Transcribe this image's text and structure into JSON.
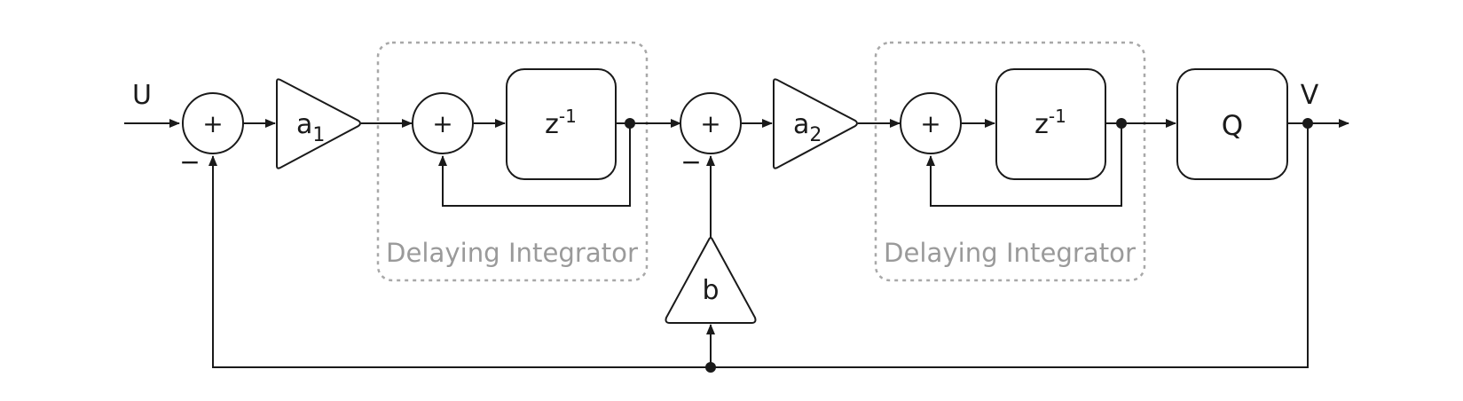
{
  "input_label": "U",
  "output_label": "V",
  "sum_symbol": "+",
  "minus_symbol": "−",
  "gain_1": {
    "base": "a",
    "sub": "1"
  },
  "gain_2": {
    "base": "a",
    "sub": "2"
  },
  "feedback_gain": "b",
  "delay_block": {
    "base": "z",
    "sup": "-1"
  },
  "quantizer": "Q",
  "integrator_group_label": "Delaying Integrator",
  "colors": {
    "line": "#1a1a1a",
    "group_border": "#a8a8a8",
    "group_text": "#9a9a9a"
  }
}
